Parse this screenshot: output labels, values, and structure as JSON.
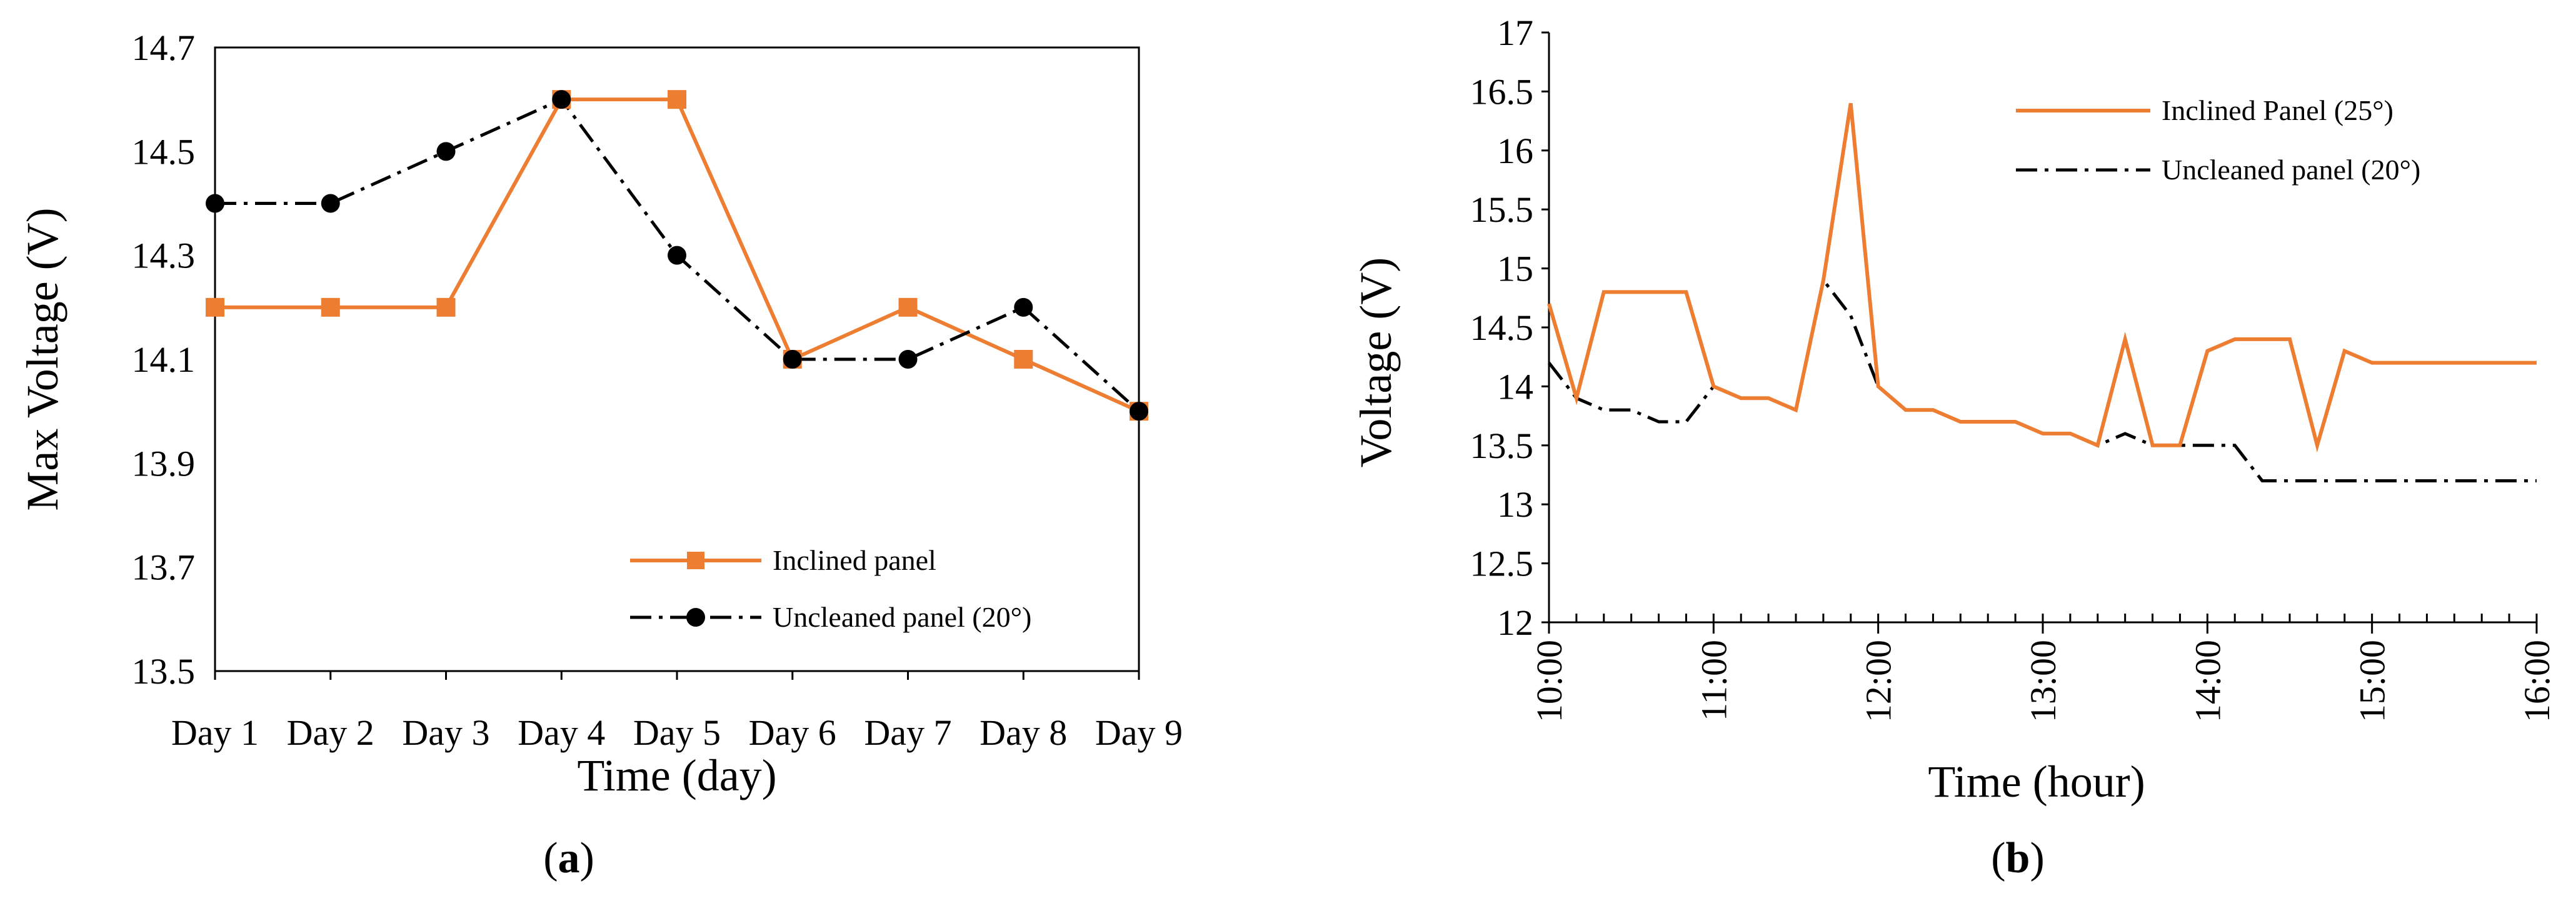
{
  "colors": {
    "inclined": "#ED7D31",
    "uncleaned": "#000000"
  },
  "chart_data": [
    {
      "type": "line",
      "caption_letter": "a",
      "xlabel": "Time (day)",
      "ylabel": "Max Voltage (V)",
      "categories": [
        "Day 1",
        "Day 2",
        "Day 3",
        "Day 4",
        "Day 5",
        "Day 6",
        "Day 7",
        "Day 8",
        "Day 9"
      ],
      "ylim": [
        13.5,
        14.7
      ],
      "yticks": [
        "13.5",
        "13.7",
        "13.9",
        "14.1",
        "14.3",
        "14.5",
        "14.7"
      ],
      "legend_position": "bottom-right",
      "series": [
        {
          "name": "Inclined panel",
          "marker": "square",
          "style": "solid",
          "values": [
            14.2,
            14.2,
            14.2,
            14.6,
            14.6,
            14.1,
            14.2,
            14.1,
            14.0
          ]
        },
        {
          "name": "Uncleaned panel (20°)",
          "marker": "circle",
          "style": "dash-dot",
          "values": [
            14.4,
            14.4,
            14.5,
            14.6,
            14.3,
            14.1,
            14.1,
            14.2,
            14.0
          ]
        }
      ]
    },
    {
      "type": "line",
      "caption_letter": "b",
      "xlabel": "Time (hour)",
      "ylabel": "Voltage (V)",
      "xlim": [
        10,
        16
      ],
      "xticks": [
        "10:00",
        "11:00",
        "12:00",
        "13:00",
        "14:00",
        "15:00",
        "16:00"
      ],
      "ylim": [
        12,
        17
      ],
      "yticks": [
        "12",
        "12.5",
        "13",
        "13.5",
        "14",
        "14.5",
        "15",
        "15.5",
        "16",
        "16.5",
        "17"
      ],
      "legend_position": "top-right",
      "x": [
        10.0,
        10.167,
        10.333,
        10.5,
        10.667,
        10.833,
        11.0,
        11.167,
        11.333,
        11.5,
        11.667,
        11.833,
        12.0,
        12.167,
        12.333,
        12.5,
        12.667,
        12.833,
        13.0,
        13.167,
        13.333,
        13.5,
        13.667,
        13.833,
        14.0,
        14.167,
        14.333,
        14.5,
        14.667,
        14.833,
        15.0,
        15.167,
        15.333,
        15.5,
        15.667,
        15.833,
        16.0
      ],
      "series": [
        {
          "name": "Inclined Panel (25°)",
          "style": "solid",
          "values": [
            14.7,
            13.9,
            14.8,
            14.8,
            14.8,
            14.8,
            14.0,
            13.9,
            13.9,
            13.8,
            14.9,
            16.4,
            14.0,
            13.8,
            13.8,
            13.7,
            13.7,
            13.7,
            13.6,
            13.6,
            13.5,
            14.4,
            13.5,
            13.5,
            14.3,
            14.4,
            14.4,
            14.4,
            13.5,
            14.3,
            14.2,
            14.2,
            14.2,
            14.2,
            14.2,
            14.2,
            14.2
          ]
        },
        {
          "name": "Uncleaned panel (20°)",
          "style": "dash-dot",
          "values": [
            14.2,
            13.9,
            13.8,
            13.8,
            13.7,
            13.7,
            14.0,
            13.9,
            13.9,
            13.8,
            14.9,
            14.6,
            14.0,
            13.8,
            13.8,
            13.7,
            13.7,
            13.7,
            13.6,
            13.6,
            13.5,
            13.6,
            13.5,
            13.5,
            13.5,
            13.5,
            13.2,
            13.2,
            13.2,
            13.2,
            13.2,
            13.2,
            13.2,
            13.2,
            13.2,
            13.2,
            13.2
          ]
        }
      ]
    }
  ]
}
